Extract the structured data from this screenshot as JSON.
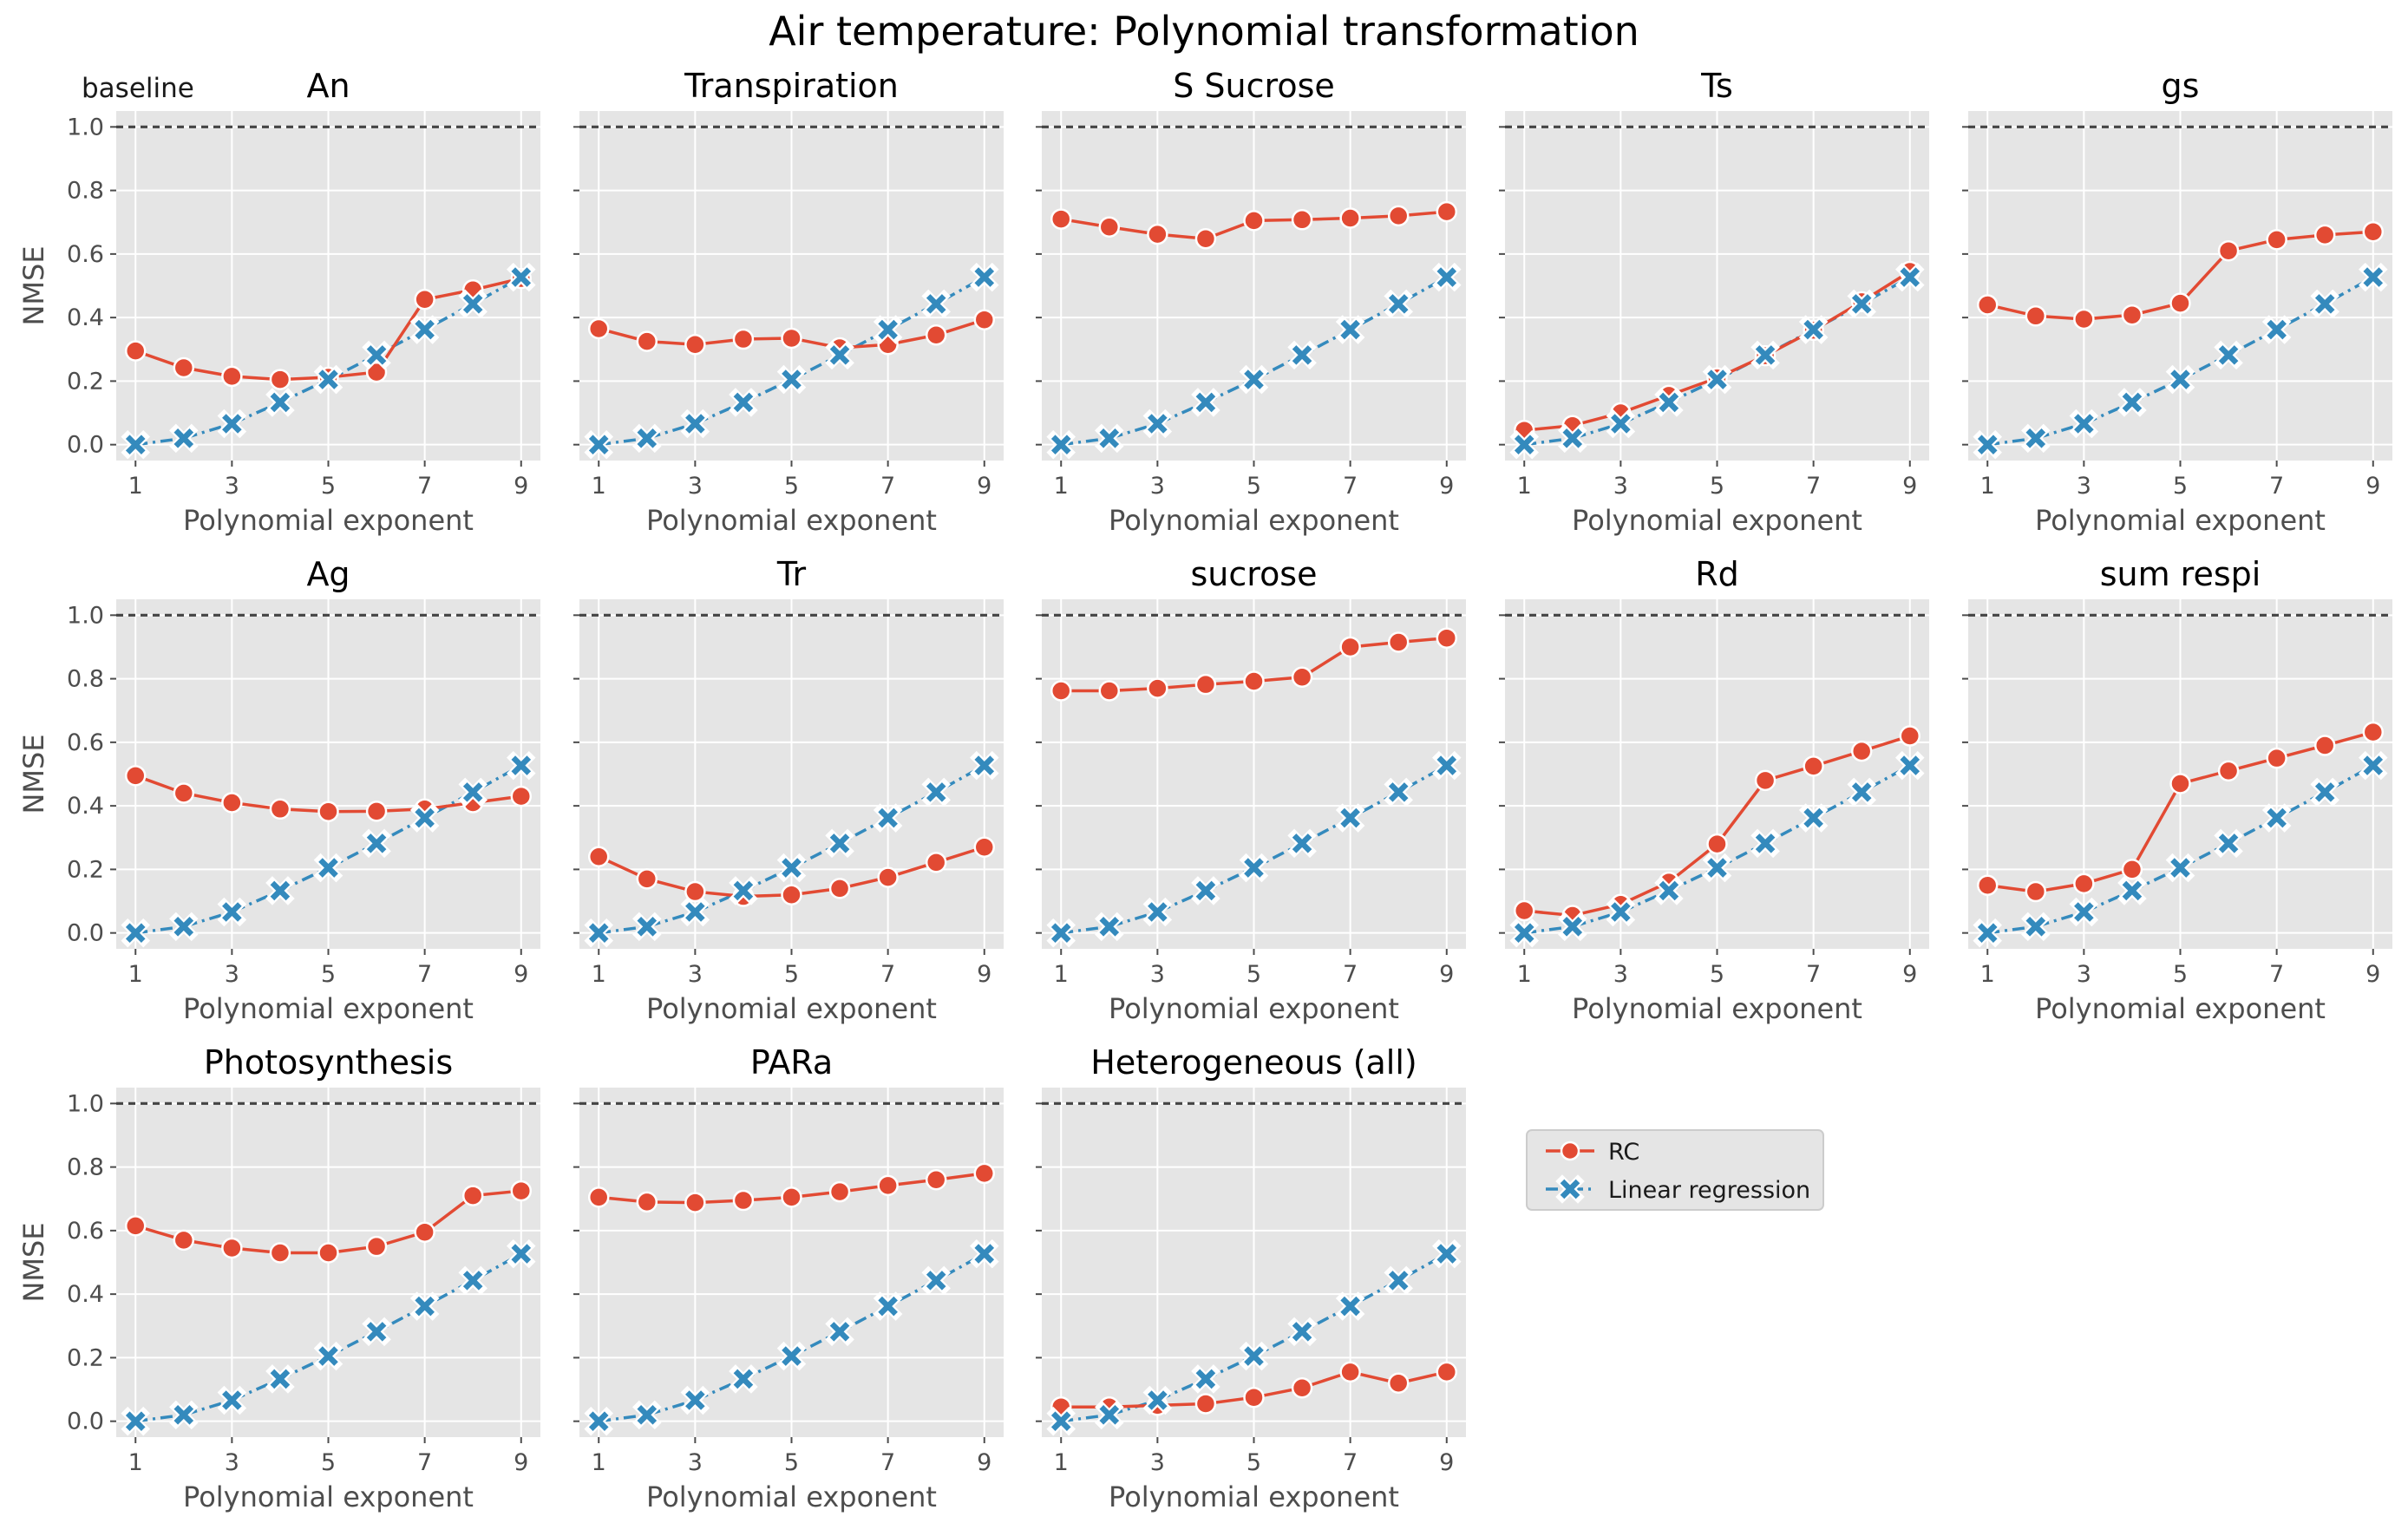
{
  "figure_title": "Air temperature: Polynomial transformation",
  "baseline_label": "baseline",
  "legend": {
    "location": "right of bottom row",
    "entries": [
      {
        "label": "RC",
        "color": "#E24A33",
        "marker": "circle",
        "linestyle": "solid"
      },
      {
        "label": "Linear regression",
        "color": "#348ABD",
        "marker": "x",
        "linestyle": "dashdot"
      }
    ]
  },
  "colors": {
    "panel_bg": "#E5E5E5",
    "grid": "#FFFFFF",
    "baseline": "#444444",
    "rc": "#E24A33",
    "linreg": "#348ABD"
  },
  "chart_data": {
    "type": "line",
    "layout": "small multiples, 3 rows x 5 columns (13 panels)",
    "shared_x": [
      1,
      2,
      3,
      4,
      5,
      6,
      7,
      8,
      9
    ],
    "xticks": [
      "1",
      "3",
      "5",
      "7",
      "9"
    ],
    "yticks": [
      "0.0",
      "0.2",
      "0.4",
      "0.6",
      "0.8",
      "1.0"
    ],
    "xlabel": "Polynomial exponent",
    "ylabel": "NMSE",
    "ylim": [
      -0.05,
      1.05
    ],
    "baseline_value": 1.0,
    "grid": true,
    "linear_regression": [
      0.0,
      0.02,
      0.066,
      0.133,
      0.205,
      0.282,
      0.362,
      0.443,
      0.527
    ],
    "panels": [
      {
        "title": "An",
        "rc": [
          0.295,
          0.242,
          0.215,
          0.205,
          0.212,
          0.228,
          0.457,
          0.487,
          0.523
        ]
      },
      {
        "title": "Transpiration",
        "rc": [
          0.365,
          0.325,
          0.315,
          0.332,
          0.335,
          0.305,
          0.315,
          0.345,
          0.393
        ]
      },
      {
        "title": "S Sucrose",
        "rc": [
          0.71,
          0.685,
          0.662,
          0.648,
          0.705,
          0.708,
          0.713,
          0.72,
          0.733
        ]
      },
      {
        "title": "Ts",
        "rc": [
          0.045,
          0.06,
          0.1,
          0.155,
          0.21,
          0.28,
          0.36,
          0.45,
          0.545
        ]
      },
      {
        "title": "gs",
        "rc": [
          0.44,
          0.405,
          0.395,
          0.408,
          0.445,
          0.61,
          0.645,
          0.66,
          0.67
        ]
      },
      {
        "title": "Ag",
        "rc": [
          0.495,
          0.44,
          0.41,
          0.39,
          0.382,
          0.383,
          0.39,
          0.41,
          0.43
        ]
      },
      {
        "title": "Tr",
        "rc": [
          0.24,
          0.17,
          0.13,
          0.115,
          0.12,
          0.14,
          0.175,
          0.222,
          0.27
        ]
      },
      {
        "title": "sucrose",
        "rc": [
          0.762,
          0.762,
          0.77,
          0.782,
          0.792,
          0.805,
          0.9,
          0.915,
          0.928
        ]
      },
      {
        "title": "Rd",
        "rc": [
          0.07,
          0.055,
          0.09,
          0.16,
          0.28,
          0.48,
          0.525,
          0.572,
          0.62
        ]
      },
      {
        "title": "sum respi",
        "rc": [
          0.15,
          0.13,
          0.155,
          0.2,
          0.47,
          0.51,
          0.55,
          0.59,
          0.632
        ]
      },
      {
        "title": "Photosynthesis",
        "rc": [
          0.615,
          0.57,
          0.545,
          0.53,
          0.53,
          0.55,
          0.595,
          0.71,
          0.725
        ]
      },
      {
        "title": "PARa",
        "rc": [
          0.705,
          0.69,
          0.688,
          0.695,
          0.705,
          0.722,
          0.742,
          0.76,
          0.78
        ]
      },
      {
        "title": "Heterogeneous (all)",
        "rc": [
          0.045,
          0.045,
          0.05,
          0.055,
          0.075,
          0.105,
          0.155,
          0.12,
          0.155
        ]
      }
    ]
  }
}
